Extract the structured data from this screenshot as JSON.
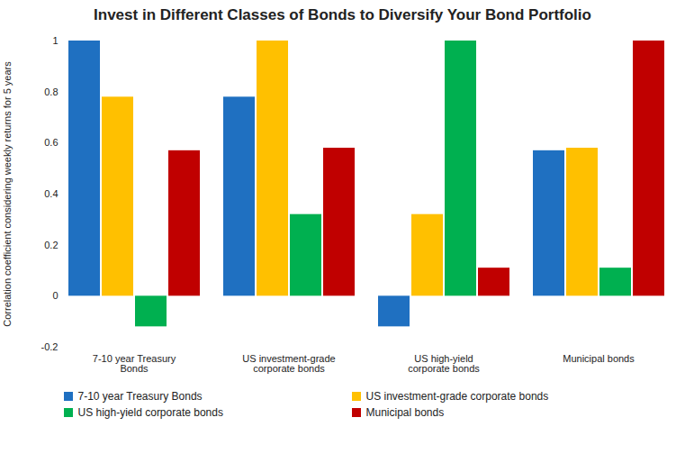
{
  "chart_data": {
    "type": "bar",
    "title": "Invest in Different Classes of Bonds to Diversify Your Bond Portfolio",
    "y_label": "Correlation coefficient considering weekly returns for 5 years",
    "categories": [
      "7-10 year Treasury Bonds",
      "US investment-grade corporate bonds",
      "US high-yield corporate bonds",
      "Municipal bonds"
    ],
    "series": [
      {
        "name": "7-10 year Treasury Bonds",
        "color": "#1f70c1",
        "values": [
          1,
          0.78,
          -0.12,
          0.57
        ]
      },
      {
        "name": "US investment-grade corporate bonds",
        "color": "#ffc000",
        "values": [
          0.78,
          1,
          0.32,
          0.58
        ]
      },
      {
        "name": "US high-yield corporate bonds",
        "color": "#00b050",
        "values": [
          -0.12,
          0.32,
          1,
          0.11
        ]
      },
      {
        "name": "Municipal bonds",
        "color": "#c00000",
        "values": [
          0.57,
          0.58,
          0.11,
          1
        ]
      }
    ],
    "ylim": [
      -0.2,
      1
    ],
    "yticks": [
      -0.2,
      0,
      0.2,
      0.4,
      0.6,
      0.8,
      1
    ],
    "grid": false,
    "legend": "bottom"
  }
}
